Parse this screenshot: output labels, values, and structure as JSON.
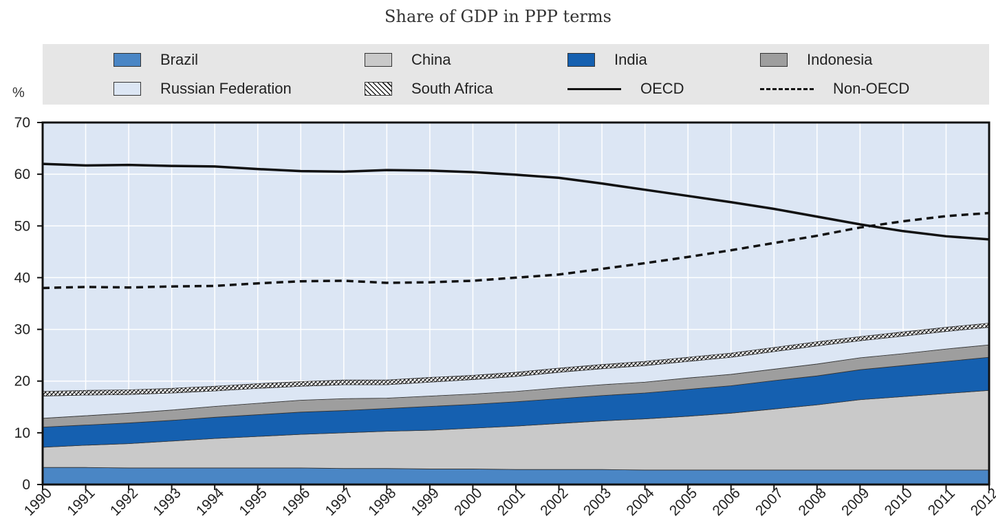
{
  "title": "Share of GDP in PPP terms",
  "unit_label": "%",
  "legend": [
    {
      "key": "brazil",
      "label": "Brazil",
      "kind": "area",
      "color": "#4a86c5"
    },
    {
      "key": "china",
      "label": "China",
      "kind": "area",
      "color": "#c9c9c9"
    },
    {
      "key": "india",
      "label": "India",
      "kind": "area",
      "color": "#1560b0"
    },
    {
      "key": "indonesia",
      "label": "Indonesia",
      "kind": "area",
      "color": "#9e9e9e"
    },
    {
      "key": "russia",
      "label": "Russian Federation",
      "kind": "area",
      "color": "#dce6f4"
    },
    {
      "key": "south_africa",
      "label": "South Africa",
      "kind": "hatch",
      "color": "#ffffff"
    },
    {
      "key": "oecd",
      "label": "OECD",
      "kind": "line",
      "color": "#111111"
    },
    {
      "key": "non_oecd",
      "label": "Non-OECD",
      "kind": "dashed",
      "color": "#111111"
    }
  ],
  "chart_data": {
    "type": "area",
    "title": "Share of GDP in PPP terms",
    "xlabel": "",
    "ylabel": "%",
    "ylim": [
      0,
      70
    ],
    "yticks": [
      0,
      10,
      20,
      30,
      40,
      50,
      60,
      70
    ],
    "x": [
      "1990",
      "1991",
      "1992",
      "1993",
      "1994",
      "1995",
      "1996",
      "1997",
      "1998",
      "1999",
      "2000",
      "2001",
      "2002",
      "2003",
      "2004",
      "2005",
      "2006",
      "2007",
      "2008",
      "2009",
      "2010",
      "2011",
      "2012"
    ],
    "stacked_series": [
      {
        "name": "Brazil",
        "values": [
          3.3,
          3.3,
          3.2,
          3.2,
          3.2,
          3.2,
          3.2,
          3.1,
          3.1,
          3.0,
          3.0,
          2.9,
          2.9,
          2.9,
          2.8,
          2.8,
          2.8,
          2.8,
          2.8,
          2.8,
          2.8,
          2.8,
          2.8
        ]
      },
      {
        "name": "China",
        "values": [
          3.9,
          4.3,
          4.7,
          5.2,
          5.7,
          6.1,
          6.5,
          6.9,
          7.2,
          7.5,
          7.9,
          8.4,
          8.9,
          9.4,
          9.9,
          10.4,
          11.0,
          11.8,
          12.6,
          13.6,
          14.2,
          14.8,
          15.4
        ]
      },
      {
        "name": "India",
        "values": [
          3.9,
          3.9,
          4.0,
          4.0,
          4.1,
          4.2,
          4.3,
          4.3,
          4.4,
          4.6,
          4.6,
          4.7,
          4.8,
          4.9,
          5.0,
          5.2,
          5.3,
          5.5,
          5.6,
          5.8,
          6.0,
          6.2,
          6.4
        ]
      },
      {
        "name": "Indonesia",
        "values": [
          1.7,
          1.8,
          1.9,
          2.0,
          2.1,
          2.2,
          2.3,
          2.3,
          2.0,
          2.0,
          2.0,
          2.0,
          2.1,
          2.1,
          2.1,
          2.2,
          2.2,
          2.2,
          2.3,
          2.3,
          2.3,
          2.4,
          2.4
        ]
      },
      {
        "name": "Russian Federation",
        "values": [
          4.3,
          4.0,
          3.6,
          3.3,
          3.0,
          2.9,
          2.7,
          2.7,
          2.6,
          2.7,
          2.8,
          2.9,
          3.0,
          3.1,
          3.2,
          3.2,
          3.3,
          3.4,
          3.5,
          3.3,
          3.4,
          3.4,
          3.4
        ]
      },
      {
        "name": "South Africa",
        "values": [
          0.9,
          0.9,
          0.9,
          0.9,
          0.9,
          0.9,
          0.9,
          0.9,
          0.9,
          0.9,
          0.8,
          0.8,
          0.8,
          0.8,
          0.8,
          0.8,
          0.8,
          0.8,
          0.8,
          0.8,
          0.8,
          0.8,
          0.8
        ]
      }
    ],
    "series": [
      {
        "name": "OECD",
        "values": [
          62.0,
          61.7,
          61.8,
          61.6,
          61.5,
          61.0,
          60.6,
          60.5,
          60.8,
          60.7,
          60.4,
          59.9,
          59.3,
          58.2,
          57.0,
          55.8,
          54.6,
          53.3,
          51.8,
          50.3,
          49.0,
          48.0,
          47.4
        ]
      },
      {
        "name": "Non-OECD",
        "values": [
          38.0,
          38.2,
          38.1,
          38.3,
          38.4,
          38.9,
          39.3,
          39.4,
          39.0,
          39.1,
          39.4,
          40.0,
          40.6,
          41.7,
          42.8,
          44.0,
          45.3,
          46.7,
          48.1,
          49.7,
          50.9,
          51.9,
          52.5
        ]
      }
    ]
  }
}
